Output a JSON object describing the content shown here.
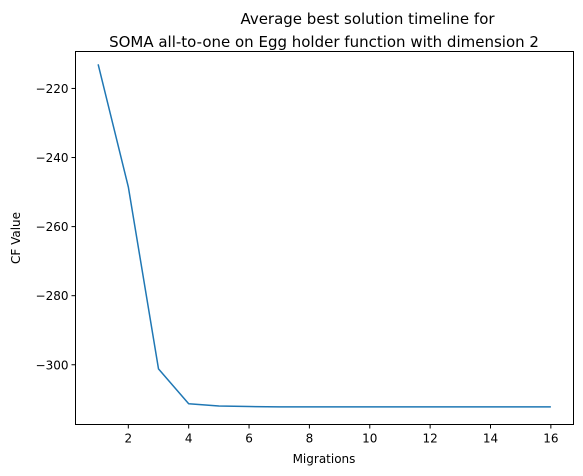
{
  "chart_data": {
    "type": "line",
    "title_lines": [
      "Average best solution timeline for",
      "SOMA all-to-one on Egg holder function with dimension 2"
    ],
    "xlabel": "Migrations",
    "ylabel": "CF Value",
    "xlim": [
      0.25,
      16.75
    ],
    "ylim": [
      -317.3,
      -209.3
    ],
    "xticks": [
      2,
      4,
      6,
      8,
      10,
      12,
      14,
      16
    ],
    "yticks": [
      -300,
      -280,
      -260,
      -240,
      -220
    ],
    "grid": false,
    "line_color": "#1f77b4",
    "series": [
      {
        "x": [
          1,
          2,
          3,
          4,
          5,
          6,
          7,
          8,
          9,
          10,
          11,
          12,
          13,
          14,
          15,
          16
        ],
        "values": [
          -213,
          -248.5,
          -301.2,
          -311.3,
          -311.95,
          -312.1,
          -312.2,
          -312.2,
          -312.2,
          -312.2,
          -312.2,
          -312.2,
          -312.2,
          -312.2,
          -312.2,
          -312.2
        ]
      }
    ]
  }
}
